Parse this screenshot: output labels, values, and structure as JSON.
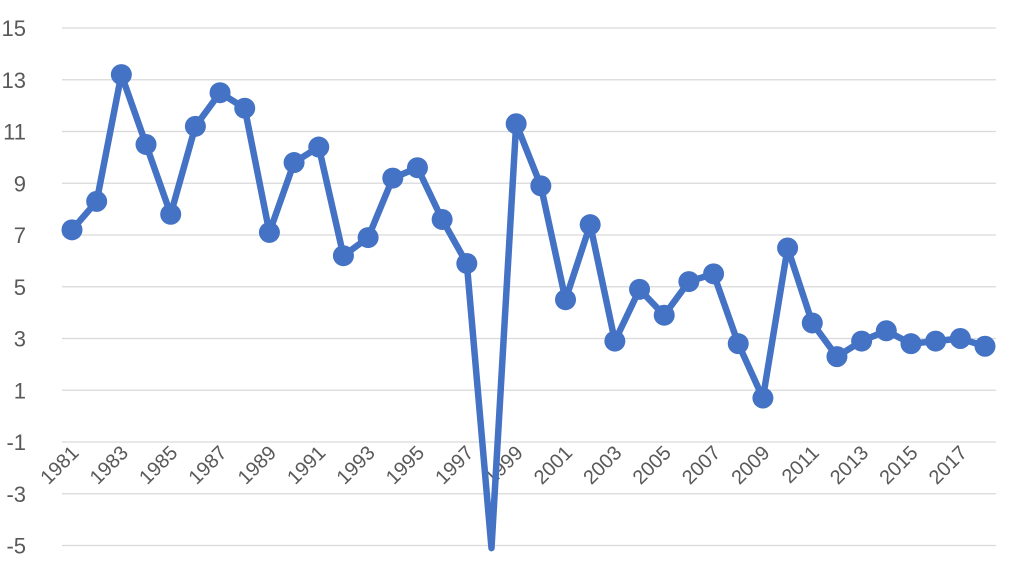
{
  "chart_data": {
    "type": "line",
    "title": "",
    "xlabel": "",
    "ylabel": "",
    "ylim": [
      -5,
      15
    ],
    "y_ticks": [
      "15",
      "13",
      "11",
      "9",
      "7",
      "5",
      "3",
      "1",
      "-1",
      "-3",
      "-5"
    ],
    "x_tick_labels": [
      "1981",
      "1983",
      "1985",
      "1987",
      "1989",
      "1991",
      "1993",
      "1995",
      "1997",
      "1999",
      "2001",
      "2003",
      "2005",
      "2007",
      "2009",
      "2011",
      "2013",
      "2015",
      "2017"
    ],
    "grid": true,
    "legend": "none",
    "colors": {
      "line": "#4472c4",
      "grid": "#d9d9d9",
      "text": "#595959"
    },
    "series": [
      {
        "x": [
          1981,
          1982,
          1983,
          1984,
          1985,
          1986,
          1987,
          1988,
          1989,
          1990,
          1991,
          1992,
          1993,
          1994,
          1995,
          1996,
          1997,
          1998,
          1999,
          2000,
          2001,
          2002,
          2003,
          2004,
          2005,
          2006,
          2007,
          2008,
          2009,
          2010,
          2011,
          2012,
          2013,
          2014,
          2015,
          2016,
          2017,
          2018
        ],
        "values": [
          7.2,
          8.3,
          13.2,
          10.5,
          7.8,
          11.2,
          12.5,
          11.9,
          7.1,
          9.8,
          10.4,
          6.2,
          6.9,
          9.2,
          9.6,
          7.6,
          5.9,
          -5.1,
          11.3,
          8.9,
          4.5,
          7.4,
          2.9,
          4.9,
          3.9,
          5.2,
          5.5,
          2.8,
          0.7,
          6.5,
          3.6,
          2.3,
          2.9,
          3.3,
          2.8,
          2.9,
          3.0,
          2.7
        ]
      }
    ]
  }
}
